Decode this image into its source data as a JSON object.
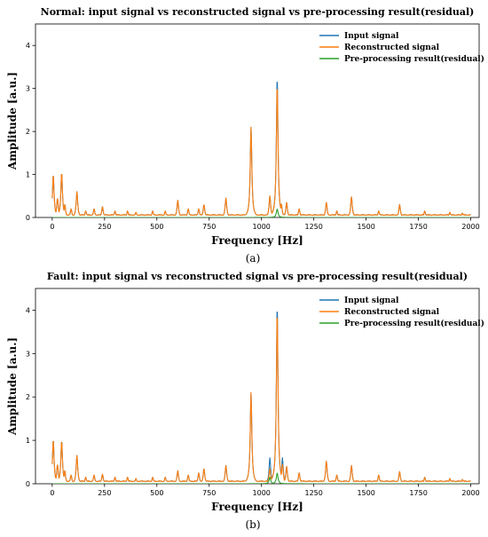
{
  "chart_data": [
    {
      "type": "line",
      "title": "Normal: input signal vs reconstructed signal vs pre-processing result(residual)",
      "xlabel": "Frequency [Hz]",
      "ylabel": "Amplitude [a.u.]",
      "xlim": [
        -80,
        2040
      ],
      "ylim": [
        0,
        4.5
      ],
      "xticks": [
        0,
        250,
        500,
        750,
        1000,
        1250,
        1500,
        1750,
        2000
      ],
      "yticks": [
        0,
        1,
        2,
        3,
        4
      ],
      "grid": false,
      "legend": "top-right",
      "caption": "(a)",
      "series": [
        {
          "name": "Input signal",
          "color": "#1f77b4",
          "baseline": 0.05,
          "peaks": [
            [
              5,
              1.0
            ],
            [
              25,
              0.45
            ],
            [
              45,
              1.05
            ],
            [
              60,
              0.3
            ],
            [
              90,
              0.2
            ],
            [
              118,
              0.6
            ],
            [
              160,
              0.15
            ],
            [
              200,
              0.2
            ],
            [
              240,
              0.25
            ],
            [
              300,
              0.15
            ],
            [
              360,
              0.15
            ],
            [
              400,
              0.12
            ],
            [
              480,
              0.15
            ],
            [
              540,
              0.15
            ],
            [
              600,
              0.4
            ],
            [
              650,
              0.2
            ],
            [
              700,
              0.2
            ],
            [
              725,
              0.3
            ],
            [
              830,
              0.45
            ],
            [
              950,
              2.1
            ],
            [
              1040,
              0.5
            ],
            [
              1075,
              3.3
            ],
            [
              1095,
              0.32
            ],
            [
              1120,
              0.35
            ],
            [
              1180,
              0.2
            ],
            [
              1310,
              0.35
            ],
            [
              1360,
              0.15
            ],
            [
              1430,
              0.48
            ],
            [
              1560,
              0.15
            ],
            [
              1660,
              0.3
            ],
            [
              1780,
              0.15
            ],
            [
              1900,
              0.12
            ],
            [
              1960,
              0.1
            ]
          ]
        },
        {
          "name": "Reconstructed signal",
          "color": "#ff7f0e",
          "baseline": 0.05,
          "peaks": [
            [
              5,
              1.0
            ],
            [
              25,
              0.45
            ],
            [
              45,
              1.05
            ],
            [
              60,
              0.3
            ],
            [
              90,
              0.2
            ],
            [
              118,
              0.6
            ],
            [
              160,
              0.15
            ],
            [
              200,
              0.2
            ],
            [
              240,
              0.25
            ],
            [
              300,
              0.15
            ],
            [
              360,
              0.15
            ],
            [
              400,
              0.12
            ],
            [
              480,
              0.15
            ],
            [
              540,
              0.15
            ],
            [
              600,
              0.4
            ],
            [
              650,
              0.2
            ],
            [
              700,
              0.2
            ],
            [
              725,
              0.3
            ],
            [
              830,
              0.45
            ],
            [
              950,
              2.1
            ],
            [
              1040,
              0.5
            ],
            [
              1075,
              3.12
            ],
            [
              1095,
              0.32
            ],
            [
              1120,
              0.35
            ],
            [
              1180,
              0.2
            ],
            [
              1310,
              0.35
            ],
            [
              1360,
              0.15
            ],
            [
              1430,
              0.48
            ],
            [
              1560,
              0.15
            ],
            [
              1660,
              0.3
            ],
            [
              1780,
              0.15
            ],
            [
              1900,
              0.12
            ],
            [
              1960,
              0.1
            ]
          ]
        },
        {
          "name": "Pre-processing result(residual)",
          "color": "#2ca02c",
          "baseline": 0.0,
          "peaks": [
            [
              1075,
              0.2
            ]
          ]
        }
      ]
    },
    {
      "type": "line",
      "title": "Fault: input signal vs reconstructed signal vs pre-processing result(residual)",
      "xlabel": "Frequency [Hz]",
      "ylabel": "Amplitude [a.u.]",
      "xlim": [
        -80,
        2040
      ],
      "ylim": [
        0,
        4.5
      ],
      "xticks": [
        0,
        250,
        500,
        750,
        1000,
        1250,
        1500,
        1750,
        2000
      ],
      "yticks": [
        0,
        1,
        2,
        3,
        4
      ],
      "grid": false,
      "legend": "top-right",
      "caption": "(b)",
      "series": [
        {
          "name": "Input signal",
          "color": "#1f77b4",
          "baseline": 0.05,
          "peaks": [
            [
              5,
              1.02
            ],
            [
              25,
              0.45
            ],
            [
              45,
              1.0
            ],
            [
              60,
              0.3
            ],
            [
              90,
              0.2
            ],
            [
              118,
              0.65
            ],
            [
              160,
              0.15
            ],
            [
              200,
              0.2
            ],
            [
              240,
              0.22
            ],
            [
              300,
              0.15
            ],
            [
              360,
              0.15
            ],
            [
              400,
              0.12
            ],
            [
              480,
              0.15
            ],
            [
              540,
              0.15
            ],
            [
              600,
              0.3
            ],
            [
              650,
              0.2
            ],
            [
              700,
              0.25
            ],
            [
              725,
              0.35
            ],
            [
              830,
              0.42
            ],
            [
              950,
              2.1
            ],
            [
              1040,
              0.6
            ],
            [
              1075,
              4.15
            ],
            [
              1100,
              0.6
            ],
            [
              1120,
              0.4
            ],
            [
              1180,
              0.25
            ],
            [
              1310,
              0.52
            ],
            [
              1360,
              0.2
            ],
            [
              1430,
              0.42
            ],
            [
              1560,
              0.2
            ],
            [
              1660,
              0.28
            ],
            [
              1780,
              0.15
            ],
            [
              1900,
              0.12
            ],
            [
              1960,
              0.1
            ]
          ]
        },
        {
          "name": "Reconstructed signal",
          "color": "#ff7f0e",
          "baseline": 0.05,
          "peaks": [
            [
              5,
              1.02
            ],
            [
              25,
              0.45
            ],
            [
              45,
              1.0
            ],
            [
              60,
              0.3
            ],
            [
              90,
              0.2
            ],
            [
              118,
              0.65
            ],
            [
              160,
              0.15
            ],
            [
              200,
              0.2
            ],
            [
              240,
              0.22
            ],
            [
              300,
              0.15
            ],
            [
              360,
              0.15
            ],
            [
              400,
              0.12
            ],
            [
              480,
              0.15
            ],
            [
              540,
              0.15
            ],
            [
              600,
              0.3
            ],
            [
              650,
              0.2
            ],
            [
              700,
              0.25
            ],
            [
              725,
              0.35
            ],
            [
              830,
              0.42
            ],
            [
              950,
              2.1
            ],
            [
              1040,
              0.35
            ],
            [
              1075,
              4.0
            ],
            [
              1100,
              0.45
            ],
            [
              1120,
              0.4
            ],
            [
              1180,
              0.25
            ],
            [
              1310,
              0.52
            ],
            [
              1360,
              0.2
            ],
            [
              1430,
              0.42
            ],
            [
              1560,
              0.2
            ],
            [
              1660,
              0.28
            ],
            [
              1780,
              0.15
            ],
            [
              1900,
              0.12
            ],
            [
              1960,
              0.1
            ]
          ]
        },
        {
          "name": "Pre-processing result(residual)",
          "color": "#2ca02c",
          "baseline": 0.0,
          "peaks": [
            [
              1040,
              0.15
            ],
            [
              1075,
              0.25
            ]
          ]
        }
      ]
    }
  ]
}
